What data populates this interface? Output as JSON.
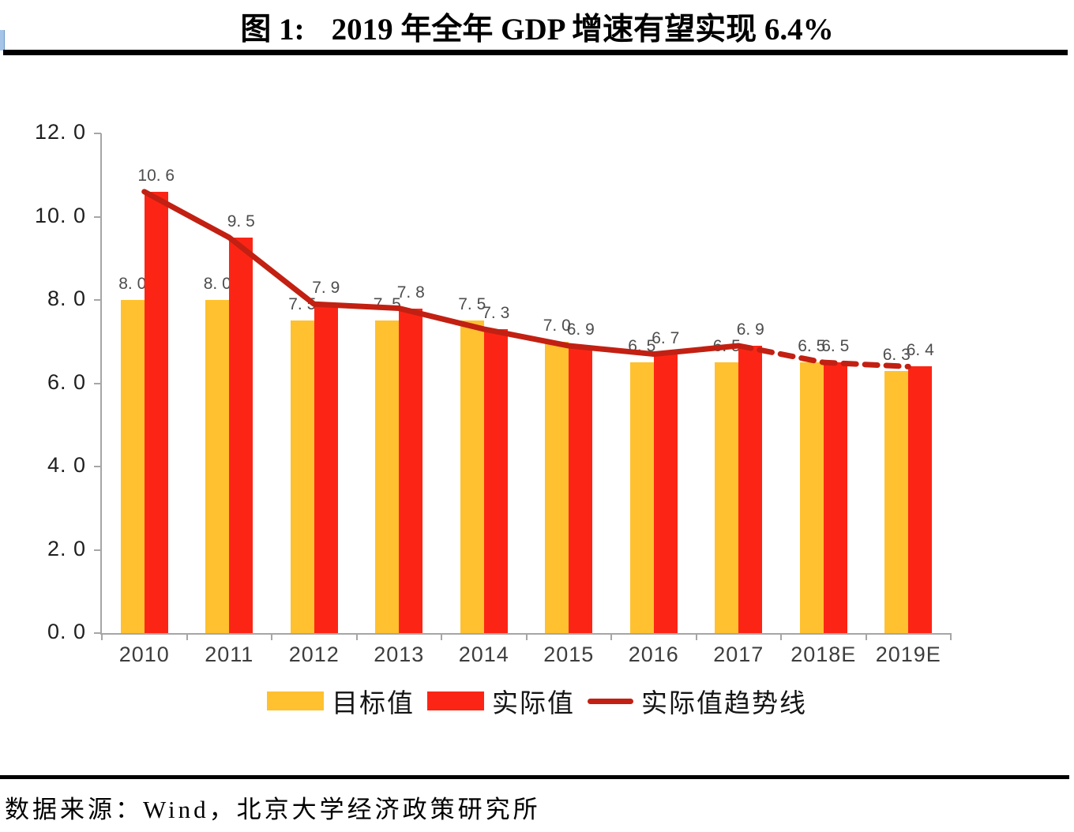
{
  "header": {
    "figure_label": "图 1:",
    "title": "2019 年全年 GDP 增速有望实现 6.4%"
  },
  "footer": {
    "source_note": "数据来源：Wind，北京大学经济政策研究所"
  },
  "chart_data": {
    "type": "bar",
    "title": "2019 年全年 GDP 增速有望实现 6.4%",
    "categories": [
      "2010",
      "2011",
      "2012",
      "2013",
      "2014",
      "2015",
      "2016",
      "2017",
      "2018E",
      "2019E"
    ],
    "series": [
      {
        "name": "目标值",
        "type": "bar",
        "color": "#FFC12F",
        "values": [
          8.0,
          8.0,
          7.5,
          7.5,
          7.5,
          7.0,
          6.5,
          6.5,
          6.5,
          6.3
        ]
      },
      {
        "name": "实际值",
        "type": "bar",
        "color": "#FC2515",
        "values": [
          10.6,
          9.5,
          7.9,
          7.8,
          7.3,
          6.9,
          6.7,
          6.9,
          6.5,
          6.4
        ]
      },
      {
        "name": "实际值趋势线",
        "type": "line",
        "color": "#C22012",
        "values": [
          10.6,
          9.5,
          7.9,
          7.8,
          7.3,
          6.9,
          6.7,
          6.9,
          6.5,
          6.4
        ],
        "dash_start_index": 7
      }
    ],
    "xlabel": "",
    "ylabel": "",
    "ylim": [
      0,
      12
    ],
    "yticks": [
      0,
      2,
      4,
      6,
      8,
      10,
      12
    ],
    "ytick_label_style": "one-decimal-with-space",
    "grid": false,
    "value_labels": true,
    "legend_position": "bottom"
  },
  "colors": {
    "axis": "#A6A6A6",
    "value_label": "#4d4d4d",
    "rule": "#000000"
  }
}
